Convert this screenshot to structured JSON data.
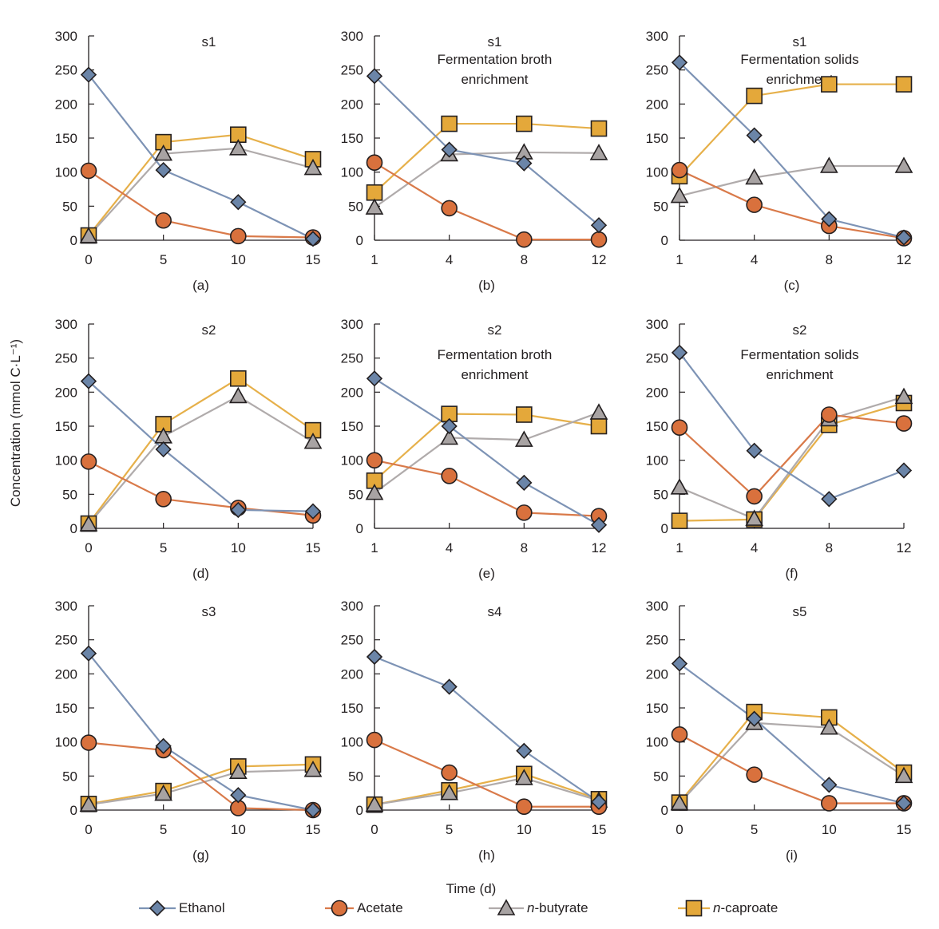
{
  "y_axis_label": "Concentration (mmol C·L⁻¹)",
  "x_axis_label": "Time (d)",
  "legend": [
    {
      "name": "Ethanol",
      "marker": "diamond",
      "fill": "#6b85a8",
      "line": "#7d93b5",
      "italic_prefix": ""
    },
    {
      "name": "Acetate",
      "marker": "circle",
      "fill": "#d9713d",
      "line": "#d97a4a",
      "italic_prefix": ""
    },
    {
      "name": "-butyrate",
      "marker": "triangle",
      "fill": "#a8a3a3",
      "line": "#b0abab",
      "italic_prefix": "n"
    },
    {
      "name": "-caproate",
      "marker": "square",
      "fill": "#e4a83a",
      "line": "#e6b04a",
      "italic_prefix": "n"
    }
  ],
  "chart_data": [
    {
      "type": "line",
      "panel": "(a)",
      "title": "s1",
      "subtitle": "",
      "x": [
        0,
        5,
        10,
        15
      ],
      "x_ticks": [
        "0",
        "5",
        "10",
        "15"
      ],
      "x_mode": "linear",
      "xlim": [
        0,
        15
      ],
      "ylim": [
        0,
        300
      ],
      "y_ticks": [
        0,
        50,
        100,
        150,
        200,
        250,
        300
      ],
      "series": [
        {
          "name": "Ethanol",
          "values": [
            243,
            103,
            56,
            2
          ]
        },
        {
          "name": "Acetate",
          "values": [
            102,
            29,
            6,
            4
          ]
        },
        {
          "name": "n-butyrate",
          "values": [
            6,
            127,
            135,
            106
          ]
        },
        {
          "name": "n-caproate",
          "values": [
            7,
            144,
            155,
            119
          ]
        }
      ]
    },
    {
      "type": "line",
      "panel": "(b)",
      "title": "s1",
      "subtitle": "Fermentation broth enrichment",
      "x": [
        1,
        4,
        8,
        12
      ],
      "x_ticks": [
        "1",
        "4",
        "8",
        "12"
      ],
      "x_mode": "categorical",
      "ylim": [
        0,
        300
      ],
      "y_ticks": [
        0,
        50,
        100,
        150,
        200,
        250,
        300
      ],
      "series": [
        {
          "name": "Ethanol",
          "values": [
            241,
            133,
            113,
            22
          ]
        },
        {
          "name": "Acetate",
          "values": [
            114,
            47,
            1,
            1
          ]
        },
        {
          "name": "n-butyrate",
          "values": [
            48,
            126,
            129,
            128
          ]
        },
        {
          "name": "n-caproate",
          "values": [
            70,
            171,
            171,
            164
          ]
        }
      ]
    },
    {
      "type": "line",
      "panel": "(c)",
      "title": "s1",
      "subtitle": "Fermentation solids enrichment",
      "x": [
        1,
        4,
        8,
        12
      ],
      "x_ticks": [
        "1",
        "4",
        "8",
        "12"
      ],
      "x_mode": "categorical",
      "ylim": [
        0,
        300
      ],
      "y_ticks": [
        0,
        50,
        100,
        150,
        200,
        250,
        300
      ],
      "series": [
        {
          "name": "Ethanol",
          "values": [
            261,
            154,
            31,
            4
          ]
        },
        {
          "name": "Acetate",
          "values": [
            103,
            52,
            21,
            3
          ]
        },
        {
          "name": "n-butyrate",
          "values": [
            65,
            92,
            109,
            109
          ]
        },
        {
          "name": "n-caproate",
          "values": [
            94,
            212,
            229,
            229
          ]
        }
      ]
    },
    {
      "type": "line",
      "panel": "(d)",
      "title": "s2",
      "subtitle": "",
      "x": [
        0,
        5,
        10,
        15
      ],
      "x_ticks": [
        "0",
        "5",
        "10",
        "15"
      ],
      "x_mode": "linear",
      "xlim": [
        0,
        15
      ],
      "ylim": [
        0,
        300
      ],
      "y_ticks": [
        0,
        50,
        100,
        150,
        200,
        250,
        300
      ],
      "series": [
        {
          "name": "Ethanol",
          "values": [
            216,
            116,
            27,
            25
          ]
        },
        {
          "name": "Acetate",
          "values": [
            98,
            43,
            30,
            19
          ]
        },
        {
          "name": "n-butyrate",
          "values": [
            6,
            135,
            194,
            127
          ]
        },
        {
          "name": "n-caproate",
          "values": [
            7,
            153,
            220,
            144
          ]
        }
      ]
    },
    {
      "type": "line",
      "panel": "(e)",
      "title": "s2",
      "subtitle": "Fermentation broth enrichment",
      "x": [
        1,
        4,
        8,
        12
      ],
      "x_ticks": [
        "1",
        "4",
        "8",
        "12"
      ],
      "x_mode": "categorical",
      "ylim": [
        0,
        300
      ],
      "y_ticks": [
        0,
        50,
        100,
        150,
        200,
        250,
        300
      ],
      "series": [
        {
          "name": "Ethanol",
          "values": [
            220,
            150,
            67,
            5
          ]
        },
        {
          "name": "Acetate",
          "values": [
            100,
            77,
            23,
            18
          ]
        },
        {
          "name": "n-butyrate",
          "values": [
            52,
            133,
            130,
            170
          ]
        },
        {
          "name": "n-caproate",
          "values": [
            70,
            168,
            167,
            150
          ]
        }
      ]
    },
    {
      "type": "line",
      "panel": "(f)",
      "title": "s2",
      "subtitle": "Fermentation solids enrichment",
      "x": [
        1,
        4,
        8,
        12
      ],
      "x_ticks": [
        "1",
        "4",
        "8",
        "12"
      ],
      "x_mode": "categorical",
      "ylim": [
        0,
        300
      ],
      "y_ticks": [
        0,
        50,
        100,
        150,
        200,
        250,
        300
      ],
      "series": [
        {
          "name": "Ethanol",
          "values": [
            258,
            114,
            43,
            85
          ]
        },
        {
          "name": "Acetate",
          "values": [
            148,
            47,
            167,
            154
          ]
        },
        {
          "name": "n-butyrate",
          "values": [
            60,
            14,
            160,
            193
          ]
        },
        {
          "name": "n-caproate",
          "values": [
            11,
            13,
            152,
            184
          ]
        }
      ]
    },
    {
      "type": "line",
      "panel": "(g)",
      "title": "s3",
      "subtitle": "",
      "x": [
        0,
        5,
        10,
        15
      ],
      "x_ticks": [
        "0",
        "5",
        "10",
        "15"
      ],
      "x_mode": "linear",
      "xlim": [
        0,
        15
      ],
      "ylim": [
        0,
        300
      ],
      "y_ticks": [
        0,
        50,
        100,
        150,
        200,
        250,
        300
      ],
      "series": [
        {
          "name": "Ethanol",
          "values": [
            230,
            94,
            22,
            0
          ]
        },
        {
          "name": "Acetate",
          "values": [
            99,
            88,
            3,
            0
          ]
        },
        {
          "name": "n-butyrate",
          "values": [
            8,
            24,
            56,
            59
          ]
        },
        {
          "name": "n-caproate",
          "values": [
            9,
            28,
            64,
            67
          ]
        }
      ]
    },
    {
      "type": "line",
      "panel": "(h)",
      "title": "s4",
      "subtitle": "",
      "x": [
        0,
        5,
        10,
        15
      ],
      "x_ticks": [
        "0",
        "5",
        "10",
        "15"
      ],
      "x_mode": "linear",
      "xlim": [
        0,
        15
      ],
      "ylim": [
        0,
        300
      ],
      "y_ticks": [
        0,
        50,
        100,
        150,
        200,
        250,
        300
      ],
      "series": [
        {
          "name": "Ethanol",
          "values": [
            225,
            181,
            87,
            12
          ]
        },
        {
          "name": "Acetate",
          "values": [
            103,
            55,
            5,
            5
          ]
        },
        {
          "name": "n-butyrate",
          "values": [
            8,
            25,
            47,
            14
          ]
        },
        {
          "name": "n-caproate",
          "values": [
            8,
            29,
            53,
            16
          ]
        }
      ]
    },
    {
      "type": "line",
      "panel": "(i)",
      "title": "s5",
      "subtitle": "",
      "x": [
        0,
        5,
        10,
        15
      ],
      "x_ticks": [
        "0",
        "5",
        "10",
        "15"
      ],
      "x_mode": "linear",
      "xlim": [
        0,
        15
      ],
      "ylim": [
        0,
        300
      ],
      "y_ticks": [
        0,
        50,
        100,
        150,
        200,
        250,
        300
      ],
      "series": [
        {
          "name": "Ethanol",
          "values": [
            215,
            134,
            37,
            10
          ]
        },
        {
          "name": "Acetate",
          "values": [
            111,
            52,
            10,
            10
          ]
        },
        {
          "name": "n-butyrate",
          "values": [
            10,
            128,
            121,
            50
          ]
        },
        {
          "name": "n-caproate",
          "values": [
            11,
            144,
            136,
            55
          ]
        }
      ]
    }
  ]
}
